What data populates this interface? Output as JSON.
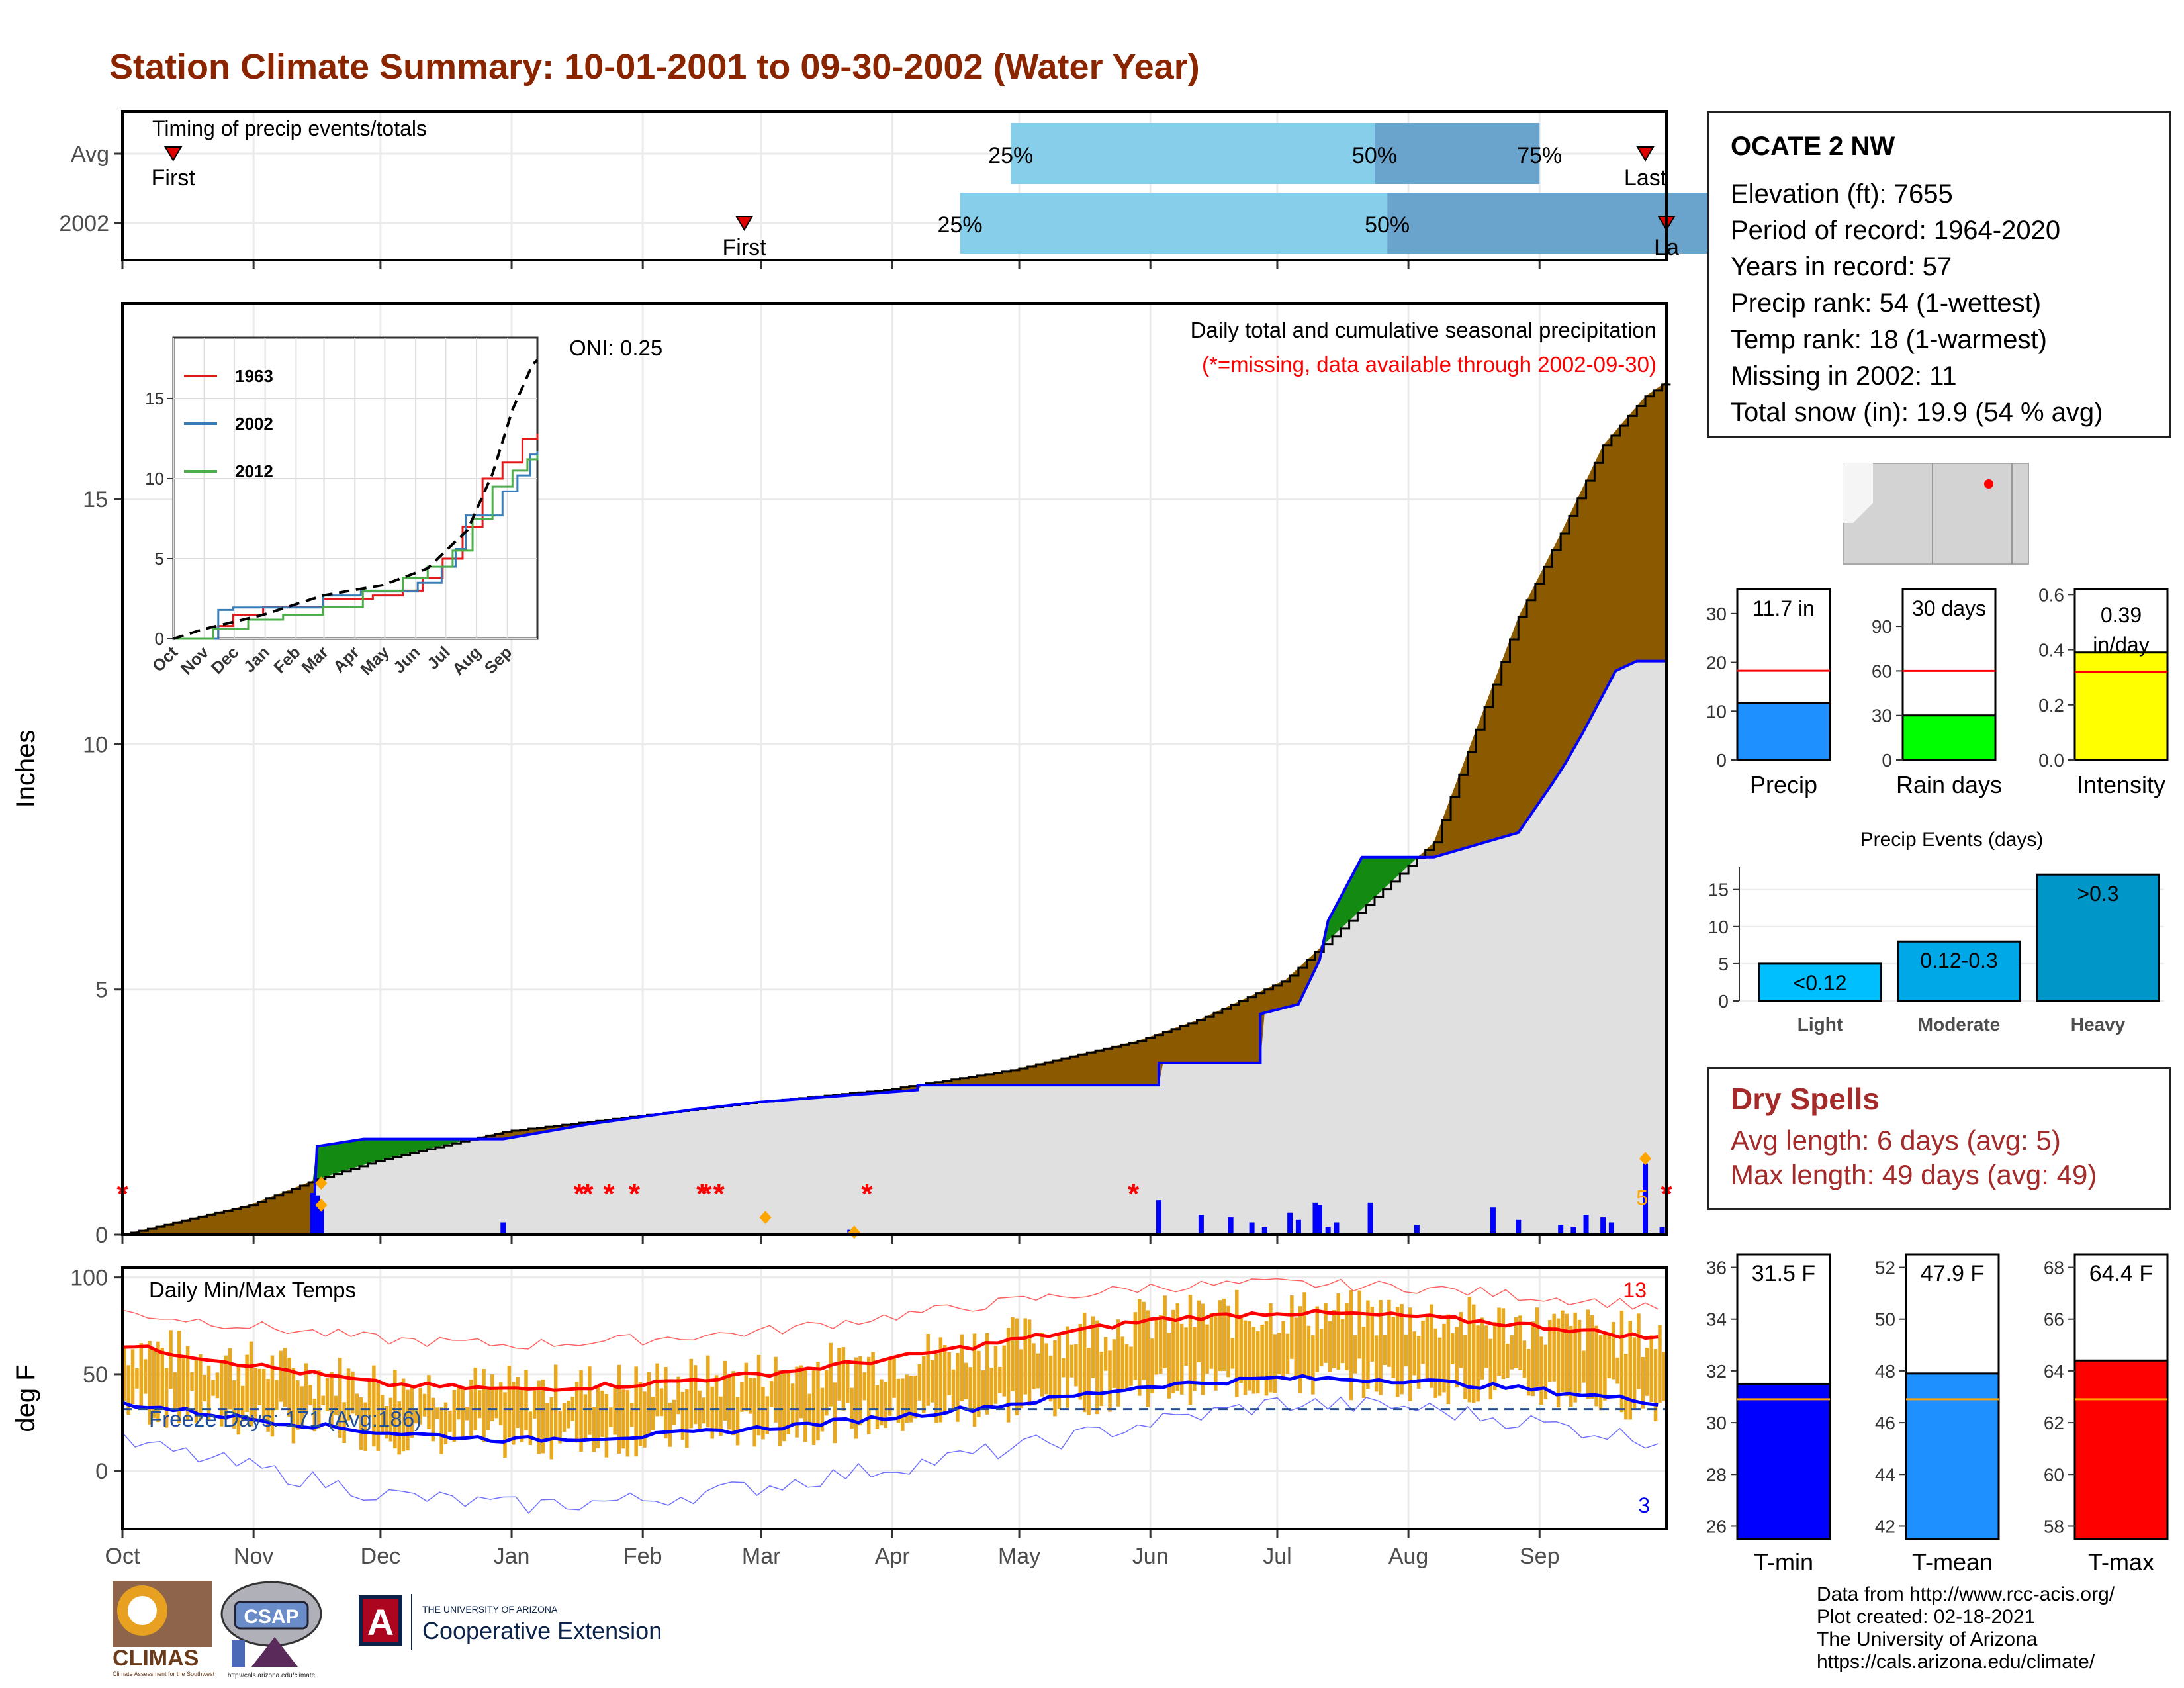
{
  "title": "Station Climate Summary: 10-01-2001 to 09-30-2002 (Water Year)",
  "station": {
    "name": "OCATE 2 NW",
    "lines": [
      "Elevation (ft): 7655",
      "Period of record: 1964-2020",
      "Years in record: 57",
      "Precip rank: 54 (1-wettest)",
      "Temp rank: 18 (1-warmest)",
      "Missing in 2002: 11",
      "Total snow (in): 19.9 (54 % avg)"
    ]
  },
  "dry_spells": {
    "title": "Dry Spells",
    "avg_length": "Avg length: 6 days (avg: 5)",
    "max_length": "Max length: 49 days (avg: 49)"
  },
  "credits": [
    "Data from http://www.rcc-acis.org/",
    "Plot created: 02-18-2021",
    "The University of Arizona",
    "https://cals.arizona.edu/climate/"
  ],
  "logos": {
    "climas": "CLIMAS",
    "climas_sub": "Climate Assessment for the Southwest",
    "csap": "CSAP",
    "csap_url": "http://cals.arizona.edu/climate",
    "ua_small": "THE UNIVERSITY OF ARIZONA",
    "ua_big": "Cooperative Extension"
  },
  "colors": {
    "title": "#8b2500",
    "brown_fill": "#8b5a00",
    "gray_fill": "#e0e0e0",
    "green_fill": "#138b13",
    "blue_line": "#0000ff",
    "orange_bar": "#e8a820",
    "red_line": "#ff0000",
    "q_light": "#87ceeb",
    "q_dark": "#6aa3cc",
    "precip_bar": "#1e90ff",
    "rain_bar": "#00ff00",
    "intensity_bar": "#ffff00",
    "light_bar": "#00bfff",
    "moderate_bar": "#00a8e8",
    "heavy_bar": "#0096c8",
    "tmin_bar": "#0000ff",
    "tmean_bar": "#1e90ff",
    "tmax_bar": "#ff0000",
    "avg_line": "#ffa500"
  },
  "chart_data": [
    {
      "id": "timing",
      "type": "bar",
      "title": "Timing of precip events/totals",
      "categories": [
        "Avg",
        "2002"
      ],
      "month_ticks": [
        "Oct",
        "Nov",
        "Dec",
        "Jan",
        "Feb",
        "Mar",
        "Apr",
        "May",
        "Jun",
        "Jul",
        "Aug",
        "Sep"
      ],
      "rows": [
        {
          "label": "Avg",
          "first_day": 12,
          "last_day": 360,
          "p25_day": 210,
          "p50_day": 296,
          "p75_day": 335,
          "first_label": "First",
          "last_label": "Last",
          "p25_label": "25%",
          "p50_label": "50%",
          "p75_label": "75%"
        },
        {
          "label": "2002",
          "first_day": 147,
          "last_day": 365,
          "p25_day": 198,
          "p50_day": 299,
          "p75_day": 381,
          "first_label": "First",
          "last_label": "La",
          "p25_label": "25%",
          "p50_label": "50%",
          "p75_label": "75%"
        }
      ]
    },
    {
      "id": "precip",
      "type": "area",
      "title": "Daily total and cumulative seasonal precipitation",
      "subtitle": "(*=missing, data available through 2002-09-30)",
      "annotation": "ONI: 0.25",
      "ylabel": "Inches",
      "ylim": [
        0,
        19
      ],
      "yticks": [
        0,
        5,
        10,
        15
      ],
      "month_ticks": [
        "Oct",
        "Nov",
        "Dec",
        "Jan",
        "Feb",
        "Mar",
        "Apr",
        "May",
        "Jun",
        "Jul",
        "Aug",
        "Sep"
      ],
      "avg_cumulative": {
        "x_day": [
          0,
          30,
          45,
          60,
          75,
          90,
          120,
          135,
          150,
          180,
          210,
          240,
          255,
          275,
          295,
          310,
          320,
          330,
          340,
          350,
          360,
          365
        ],
        "y": [
          0,
          0.6,
          1.1,
          1.5,
          1.8,
          2.1,
          2.4,
          2.55,
          2.7,
          2.95,
          3.35,
          3.95,
          4.4,
          5.2,
          6.8,
          8.0,
          10.3,
          12.6,
          14.3,
          16.1,
          17.1,
          17.4
        ]
      },
      "year_cumulative": {
        "x_day": [
          0,
          45,
          46,
          57,
          90,
          110,
          135,
          150,
          188,
          188,
          245,
          245,
          269,
          269,
          278,
          283,
          285,
          293,
          310,
          330,
          338,
          341,
          345,
          353,
          358,
          365
        ],
        "y": [
          0,
          0,
          1.8,
          1.95,
          1.95,
          2.25,
          2.55,
          2.7,
          2.95,
          3.05,
          3.05,
          3.5,
          3.5,
          4.5,
          4.7,
          5.6,
          6.4,
          7.7,
          7.7,
          8.2,
          9.2,
          9.6,
          10.2,
          11.5,
          11.7,
          11.7
        ]
      },
      "daily_bars": {
        "x_day": [
          45,
          46,
          47,
          90,
          172,
          245,
          255,
          262,
          267,
          270,
          276,
          278,
          282,
          283,
          285,
          287,
          295,
          306,
          324,
          330,
          340,
          343,
          346,
          350,
          352,
          360,
          364
        ],
        "y": [
          0.85,
          0.8,
          0.6,
          0.25,
          0.1,
          0.7,
          0.4,
          0.35,
          0.25,
          0.15,
          0.45,
          0.3,
          0.65,
          0.6,
          0.15,
          0.25,
          0.65,
          0.2,
          0.55,
          0.3,
          0.2,
          0.15,
          0.4,
          0.35,
          0.25,
          1.45,
          0.15
        ]
      },
      "missing_days": [
        0,
        108,
        110,
        115,
        121,
        137,
        138,
        141,
        176,
        239,
        365
      ],
      "count_label": "5"
    },
    {
      "id": "oni_inset",
      "type": "line",
      "yticks": [
        0,
        5,
        10,
        15
      ],
      "month_ticks": [
        "Oct",
        "Nov",
        "Dec",
        "Jan",
        "Feb",
        "Mar",
        "Apr",
        "May",
        "Jun",
        "Jul",
        "Aug",
        "Sep"
      ],
      "series": [
        {
          "name": "1963",
          "color": "#e31a1c",
          "x_day": [
            0,
            45,
            60,
            90,
            150,
            200,
            230,
            250,
            270,
            290,
            310,
            330,
            350,
            365
          ],
          "y": [
            0,
            0.8,
            1.5,
            2.0,
            2.5,
            2.7,
            3.0,
            3.8,
            5.0,
            7.0,
            10.0,
            11.0,
            12.5,
            12.8
          ]
        },
        {
          "name": "2002",
          "color": "#377eb8",
          "x_day": [
            0,
            45,
            60,
            90,
            150,
            188,
            245,
            269,
            283,
            293,
            310,
            330,
            345,
            358,
            365
          ],
          "y": [
            0,
            1.8,
            1.95,
            1.95,
            2.7,
            2.95,
            3.5,
            4.5,
            5.6,
            7.7,
            7.7,
            9.2,
            10.2,
            11.5,
            11.7
          ]
        },
        {
          "name": "2012",
          "color": "#4daf4a",
          "x_day": [
            0,
            40,
            75,
            110,
            150,
            190,
            230,
            255,
            280,
            300,
            320,
            340,
            355,
            365
          ],
          "y": [
            0,
            0.6,
            1.2,
            1.5,
            2.0,
            3.0,
            3.8,
            4.5,
            5.5,
            7.5,
            9.5,
            10.5,
            11.2,
            11.5
          ]
        },
        {
          "name": "avg",
          "color": "#000000",
          "x_day": [
            0,
            30,
            90,
            150,
            210,
            255,
            295,
            320,
            340,
            360,
            365
          ],
          "y": [
            0,
            0.6,
            1.5,
            2.7,
            3.35,
            4.4,
            6.8,
            10.3,
            14.3,
            17.1,
            17.4
          ]
        }
      ]
    },
    {
      "id": "temps",
      "type": "line",
      "title": "Daily Min/Max Temps",
      "ylabel": "deg F",
      "ylim": [
        -30,
        105
      ],
      "yticks": [
        0,
        50,
        100
      ],
      "annotation": "Freeze Days: 171 (Avg:186)",
      "freeze_line": 32,
      "record_high_count": "13",
      "record_low_count": "3",
      "month_ticks": [
        "Oct",
        "Nov",
        "Dec",
        "Jan",
        "Feb",
        "Mar",
        "Apr",
        "May",
        "Jun",
        "Jul",
        "Aug",
        "Sep"
      ],
      "avg_max": {
        "x_day": [
          0,
          30,
          61,
          92,
          123,
          151,
          182,
          212,
          243,
          273,
          304,
          334,
          365
        ],
        "y": [
          65,
          55,
          45,
          42,
          45,
          50,
          58,
          68,
          78,
          82,
          80,
          75,
          68
        ]
      },
      "avg_min": {
        "x_day": [
          0,
          30,
          61,
          92,
          123,
          151,
          182,
          212,
          243,
          273,
          304,
          334,
          365
        ],
        "y": [
          35,
          27,
          20,
          16,
          18,
          22,
          28,
          35,
          44,
          48,
          47,
          42,
          35
        ]
      },
      "record_max": {
        "x_day": [
          0,
          30,
          61,
          92,
          123,
          151,
          182,
          212,
          243,
          273,
          304,
          334,
          365
        ],
        "y": [
          82,
          75,
          68,
          65,
          68,
          72,
          80,
          88,
          95,
          97,
          95,
          90,
          85
        ]
      },
      "record_min": {
        "x_day": [
          0,
          30,
          61,
          92,
          123,
          151,
          182,
          212,
          243,
          273,
          304,
          334,
          365
        ],
        "y": [
          15,
          2,
          -12,
          -18,
          -15,
          -8,
          2,
          12,
          25,
          35,
          33,
          25,
          15
        ]
      }
    },
    {
      "id": "precip_gauges",
      "type": "bar",
      "panels": [
        {
          "label": "Precip",
          "value_label": "11.7 in",
          "value": 11.7,
          "avg": 18.3,
          "ylim": [
            0,
            35
          ],
          "yticks": [
            0,
            10,
            20,
            30
          ]
        },
        {
          "label": "Rain days",
          "value_label": "30 days",
          "value": 30,
          "avg": 60,
          "ylim": [
            0,
            115
          ],
          "yticks": [
            0,
            30,
            60,
            90
          ]
        },
        {
          "label": "Intensity",
          "value_label": "0.39 in/day",
          "value": 0.39,
          "avg": 0.32,
          "ylim": [
            0,
            0.62
          ],
          "yticks": [
            0.0,
            0.2,
            0.4,
            0.6
          ]
        }
      ]
    },
    {
      "id": "precip_events",
      "type": "bar",
      "title": "Precip Events (days)",
      "categories": [
        "Light",
        "Moderate",
        "Heavy"
      ],
      "bar_labels": [
        "<0.12",
        "0.12-0.3",
        ">0.3"
      ],
      "values": [
        5,
        8,
        17
      ],
      "ylim": [
        0,
        18
      ],
      "yticks": [
        0,
        5,
        10,
        15
      ]
    },
    {
      "id": "temp_gauges",
      "type": "bar",
      "panels": [
        {
          "label": "T-min",
          "value_label": "31.5 F",
          "value": 31.5,
          "avg": 30.9,
          "ylim": [
            25.5,
            36.5
          ],
          "yticks": [
            26,
            28,
            30,
            32,
            34,
            36
          ]
        },
        {
          "label": "T-mean",
          "value_label": "47.9 F",
          "value": 47.9,
          "avg": 46.9,
          "ylim": [
            41.5,
            52.5
          ],
          "yticks": [
            42,
            44,
            46,
            48,
            50,
            52
          ]
        },
        {
          "label": "T-max",
          "value_label": "64.4 F",
          "value": 64.4,
          "avg": 62.9,
          "ylim": [
            57.5,
            68.5
          ],
          "yticks": [
            58,
            60,
            62,
            64,
            66,
            68
          ]
        }
      ]
    }
  ]
}
